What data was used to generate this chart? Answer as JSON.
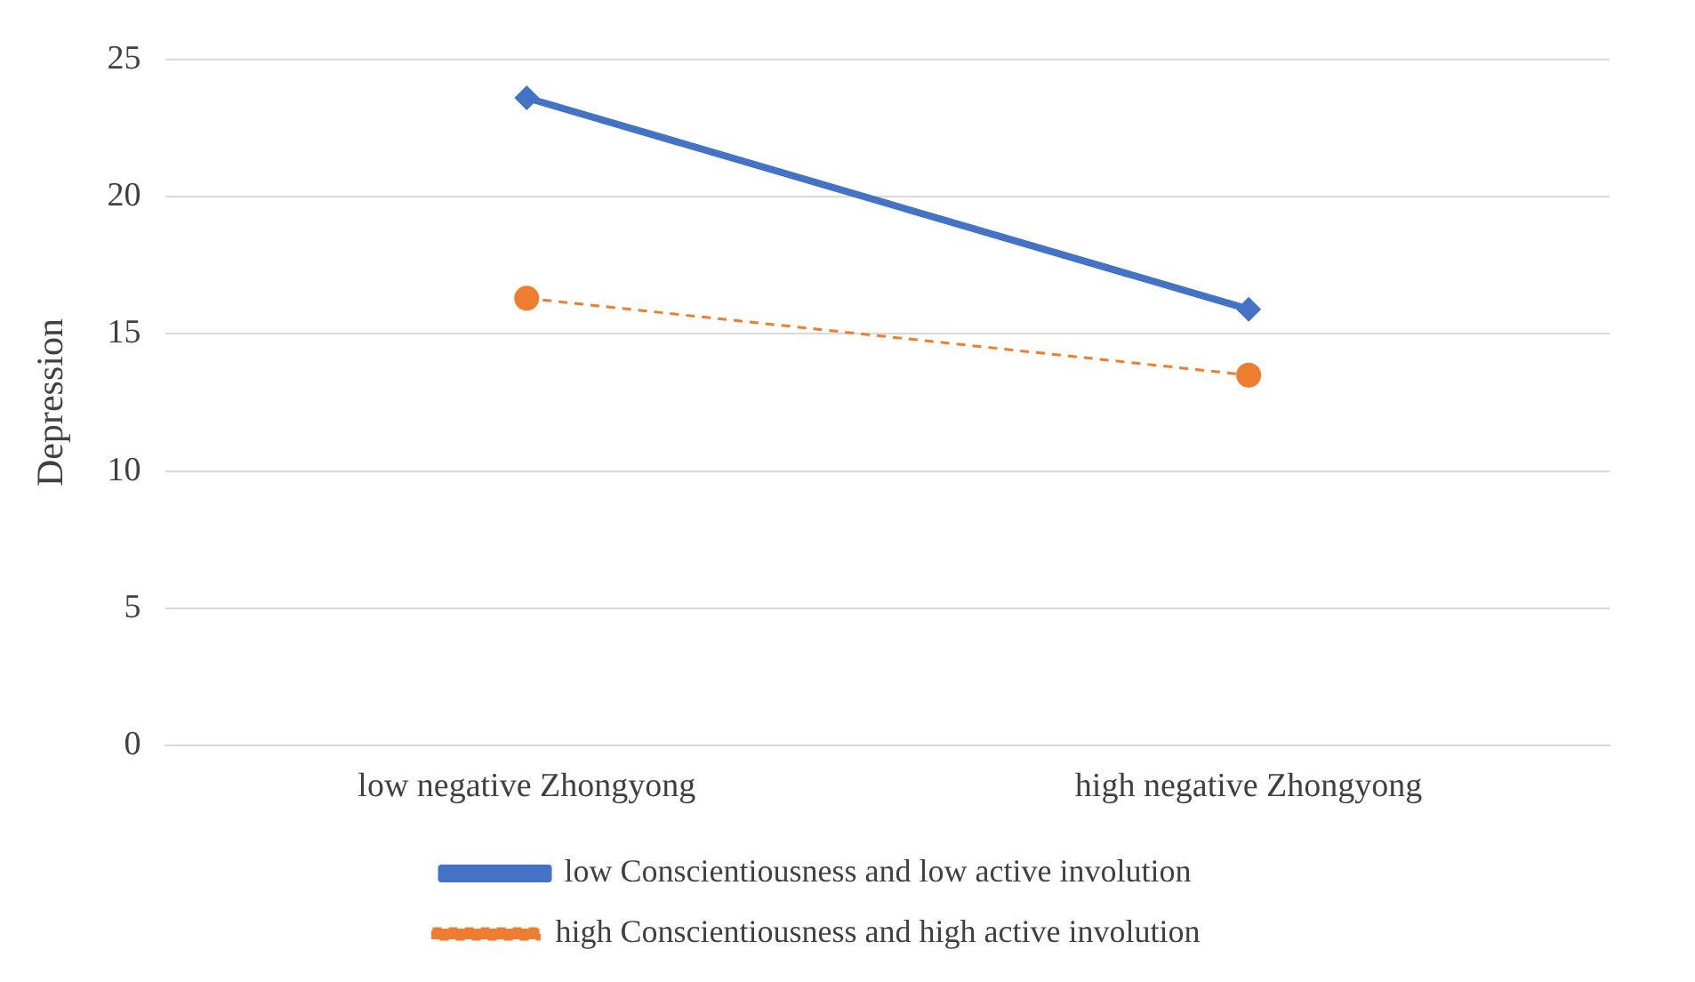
{
  "chart_data": {
    "type": "line",
    "ylabel": "Depression",
    "categories": [
      "low negative Zhongyong",
      "high negative Zhongyong"
    ],
    "series": [
      {
        "name": "low Conscientiousness and low active involution",
        "color": "#4472c4",
        "values": [
          23.6,
          15.9
        ],
        "marker": "diamond",
        "line_style": "solid"
      },
      {
        "name": "high Conscientiousness and high active involution",
        "color": "#ed7d31",
        "values": [
          16.3,
          13.5
        ],
        "marker": "circle",
        "line_style": "dashed"
      }
    ],
    "ylim": [
      0,
      25
    ],
    "yticks": [
      0,
      5,
      10,
      15,
      20,
      25
    ],
    "grid": "y",
    "legend": "bottom"
  }
}
